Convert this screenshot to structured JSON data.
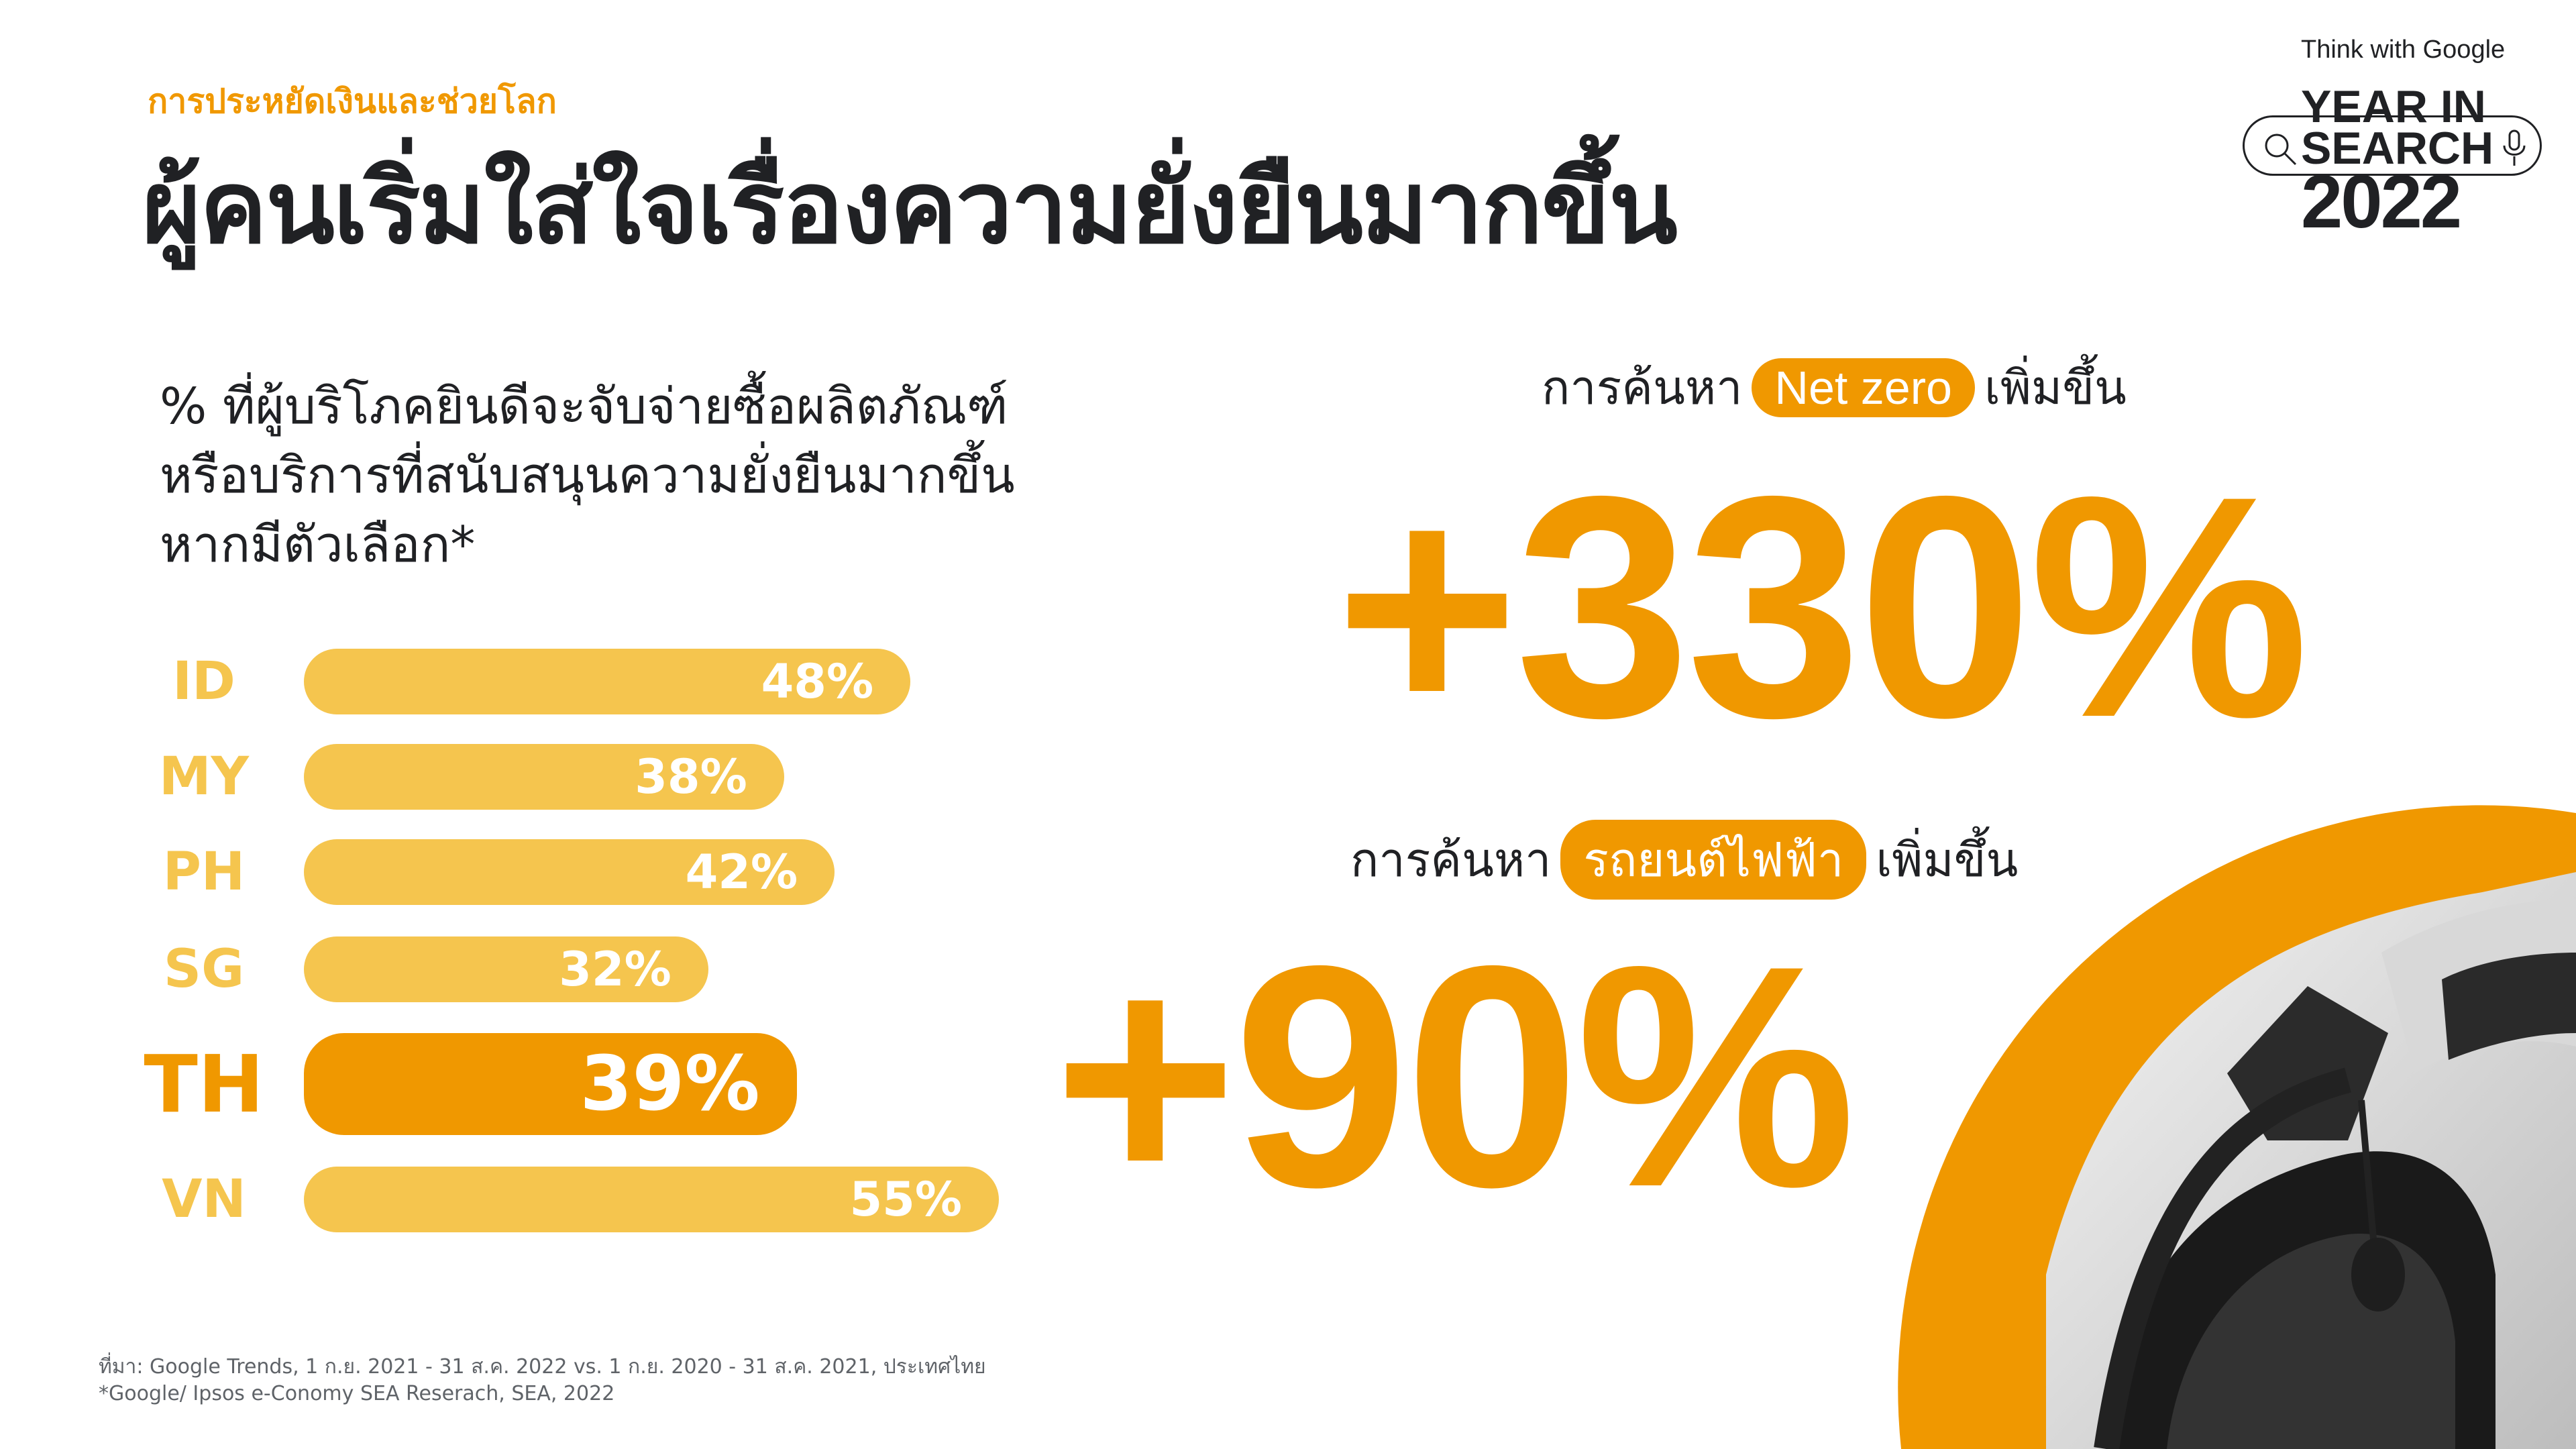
{
  "header": {
    "kicker": "การประหยัดเงินและช่วยโลก",
    "title": "ผู้คนเริ่มใส่ใจเรื่องความยั่งยืนมากขึ้น"
  },
  "logo": {
    "brand": "Think with Google",
    "line1": "YEAR IN",
    "line2": "SEARCH",
    "line3": "2022"
  },
  "chart_data": {
    "type": "bar",
    "orientation": "horizontal",
    "title": "% ที่ผู้บริโภคยินดีจะจับจ่ายซื้อผลิตภัณฑ์หรือบริการที่สนับสนุนความยั่งยืนมากขึ้นหากมีตัวเลือก*",
    "title_lines": [
      "% ที่ผู้บริโภคยินดีจะจับจ่ายซื้อผลิตภัณฑ์",
      "หรือบริการที่สนับสนุนความยั่งยืนมากขึ้น",
      "หากมีตัวเลือก*"
    ],
    "categories": [
      "ID",
      "MY",
      "PH",
      "SG",
      "TH",
      "VN"
    ],
    "values": [
      48,
      38,
      42,
      32,
      39,
      55
    ],
    "labels": [
      "48%",
      "38%",
      "42%",
      "32%",
      "39%",
      "55%"
    ],
    "highlight": "TH",
    "colors": {
      "default": "#F5C54E",
      "highlight": "#F09800"
    }
  },
  "stats": [
    {
      "prefix": "การค้นหา",
      "term": "Net zero",
      "suffix": "เพิ่มขึ้น",
      "value": "+330%"
    },
    {
      "prefix": "การค้นหา",
      "term": "รถยนต์ไฟฟ้า",
      "suffix": "เพิ่มขึ้น",
      "value": "+90%"
    }
  ],
  "footer": {
    "source": "ที่มา: Google Trends, 1 ก.ย. 2021 - 31 ส.ค. 2022 vs. 1 ก.ย. 2020 - 31 ส.ค. 2021, ประเทศไทย",
    "note": "*Google/ Ipsos e-Conomy SEA Reserach, SEA, 2022"
  },
  "colors": {
    "accent": "#F09800",
    "bar_light": "#F5C54E",
    "text": "#202124"
  }
}
